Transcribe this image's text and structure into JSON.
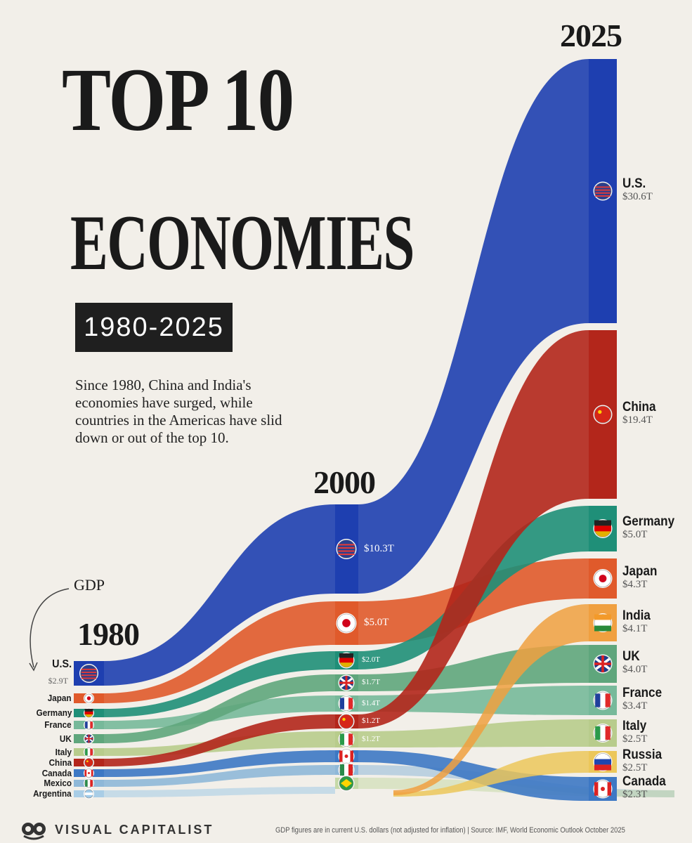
{
  "title_line1": "TOP 10",
  "title_line2": "ECONOMIES",
  "year_range": "1980-2025",
  "intro": "Since 1980, China and India's economies have surged, while countries in the Americas have slid down or out of the top 10.",
  "gdp_note": "GDP",
  "brand": "VISUAL CAPITALIST",
  "source": "GDP figures are in current U.S. dollars (not adjusted for inflation) | Source: IMF, World Economic Outlook October 2025",
  "chart_data": {
    "type": "area",
    "subtype": "ranked bump / sankey",
    "x": [
      "1980",
      "2000",
      "2025"
    ],
    "unit": "GDP, trillions USD",
    "colors": {
      "U.S.": "#1e3fb0",
      "Japan": "#e05a2b",
      "Germany": "#1f8f78",
      "France": "#77b99a",
      "UK": "#5fa67c",
      "Italy": "#b8cc8c",
      "China": "#b3261b",
      "Canada": "#3d78c4",
      "Mexico": "#8fb8d8",
      "Argentina": "#a9cde6",
      "Brazil": "#c6d9a8",
      "India": "#f0a040",
      "Russia": "#ecc75a"
    },
    "ranks": {
      "1980": [
        "U.S.",
        "Japan",
        "Germany",
        "France",
        "UK",
        "Italy",
        "China",
        "Canada",
        "Mexico",
        "Argentina"
      ],
      "2000": [
        "U.S.",
        "Japan",
        "Germany",
        "UK",
        "France",
        "China",
        "Italy",
        "Canada",
        "Mexico",
        "Brazil"
      ],
      "2025": [
        "U.S.",
        "China",
        "Germany",
        "Japan",
        "India",
        "UK",
        "France",
        "Italy",
        "Russia",
        "Canada"
      ]
    },
    "series": [
      {
        "name": "U.S.",
        "values": [
          2.9,
          10.3,
          30.6
        ]
      },
      {
        "name": "Japan",
        "values": [
          null,
          5.0,
          4.3
        ]
      },
      {
        "name": "Germany",
        "values": [
          null,
          2.0,
          5.0
        ]
      },
      {
        "name": "UK",
        "values": [
          null,
          1.7,
          4.0
        ]
      },
      {
        "name": "France",
        "values": [
          null,
          1.4,
          3.4
        ]
      },
      {
        "name": "China",
        "values": [
          null,
          1.2,
          19.4
        ]
      },
      {
        "name": "Italy",
        "values": [
          null,
          1.2,
          2.5
        ]
      },
      {
        "name": "India",
        "values": [
          null,
          null,
          4.1
        ]
      },
      {
        "name": "Russia",
        "values": [
          null,
          null,
          2.5
        ]
      },
      {
        "name": "Canada",
        "values": [
          null,
          null,
          2.3
        ]
      },
      {
        "name": "Mexico",
        "values": [
          null,
          null,
          null
        ]
      },
      {
        "name": "Argentina",
        "values": [
          null,
          null,
          null
        ]
      },
      {
        "name": "Brazil",
        "values": [
          null,
          null,
          null
        ]
      }
    ],
    "labels": {
      "1980": [
        {
          "name": "U.S.",
          "value": "$2.9T"
        },
        {
          "name": "Japan"
        },
        {
          "name": "Germany"
        },
        {
          "name": "France"
        },
        {
          "name": "UK"
        },
        {
          "name": "Italy"
        },
        {
          "name": "China"
        },
        {
          "name": "Canada"
        },
        {
          "name": "Mexico"
        },
        {
          "name": "Argentina"
        }
      ],
      "2000": [
        {
          "name": "U.S.",
          "value": "$10.3T"
        },
        {
          "name": "Japan",
          "value": "$5.0T"
        },
        {
          "name": "Germany",
          "value": "$2.0T"
        },
        {
          "name": "UK",
          "value": "$1.7T"
        },
        {
          "name": "France",
          "value": "$1.4T"
        },
        {
          "name": "China",
          "value": "$1.2T"
        },
        {
          "name": "Italy",
          "value": "$1.2T"
        },
        {
          "name": "Canada"
        },
        {
          "name": "Mexico"
        },
        {
          "name": "Brazil"
        }
      ],
      "2025": [
        {
          "name": "U.S.",
          "value": "$30.6T"
        },
        {
          "name": "China",
          "value": "$19.4T"
        },
        {
          "name": "Germany",
          "value": "$5.0T"
        },
        {
          "name": "Japan",
          "value": "$4.3T"
        },
        {
          "name": "India",
          "value": "$4.1T"
        },
        {
          "name": "UK",
          "value": "$4.0T"
        },
        {
          "name": "France",
          "value": "$3.4T"
        },
        {
          "name": "Italy",
          "value": "$2.5T"
        },
        {
          "name": "Russia",
          "value": "$2.5T"
        },
        {
          "name": "Canada",
          "value": "$2.3T"
        }
      ]
    }
  }
}
